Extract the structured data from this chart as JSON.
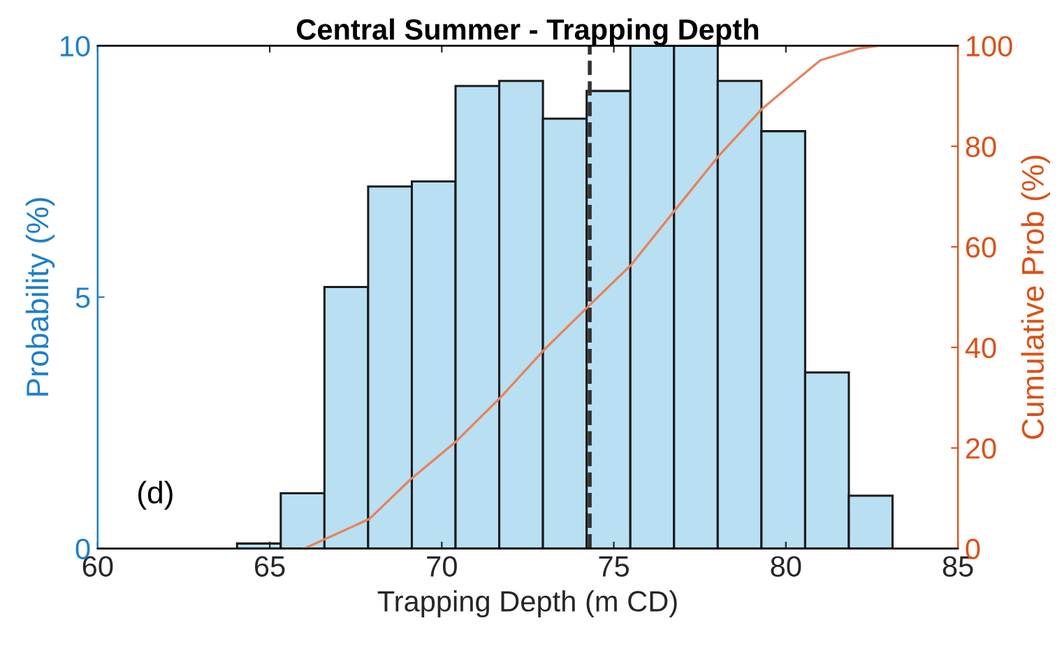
{
  "chart_data": {
    "type": "histogram",
    "title": "Central Summer - Trapping Depth",
    "xlabel": "Trapping Depth (m CD)",
    "ylabel": "Probability (%)",
    "y2label": "Cumulative Prob (%)",
    "bins": [
      64.05,
      65.32,
      66.59,
      67.86,
      69.13,
      70.4,
      71.67,
      72.94,
      74.21,
      75.48,
      76.75,
      78.02,
      79.29,
      80.56,
      81.83,
      83.1
    ],
    "values": [
      0.1,
      1.1,
      5.2,
      7.2,
      7.3,
      9.2,
      9.3,
      8.55,
      9.1,
      10,
      10,
      9.3,
      8.3,
      3.5,
      1.05
    ],
    "color": "#b8e0f2",
    "series": [
      {
        "type": "line",
        "axis": "y2",
        "color": "#e8825a",
        "x": [
          66.0,
          66.2,
          67.9,
          69.1,
          70.4,
          71.7,
          73.0,
          74.25,
          75.5,
          76.8,
          78.05,
          79.3,
          80.1,
          81.0,
          82.1,
          82.7
        ],
        "values": [
          0,
          0.6,
          5.9,
          13.8,
          21.2,
          30,
          39.7,
          48.1,
          56.4,
          67.5,
          78.1,
          87.4,
          92,
          97.1,
          99.4,
          100
        ]
      }
    ],
    "xlim": [
      60,
      85
    ],
    "xticks": [
      60,
      65,
      70,
      75,
      80,
      85
    ],
    "ylim": [
      0,
      10
    ],
    "yticks": [
      0,
      5,
      10
    ],
    "y2lim": [
      0,
      100
    ],
    "y2ticks": [
      0,
      20,
      40,
      60,
      80,
      100
    ],
    "ref_lines": [
      {
        "axis": "x",
        "value": 74.3,
        "color": "#333333",
        "line_style": "dashed"
      }
    ],
    "annotations": [
      "(d)"
    ],
    "grid": false,
    "legend": false
  }
}
